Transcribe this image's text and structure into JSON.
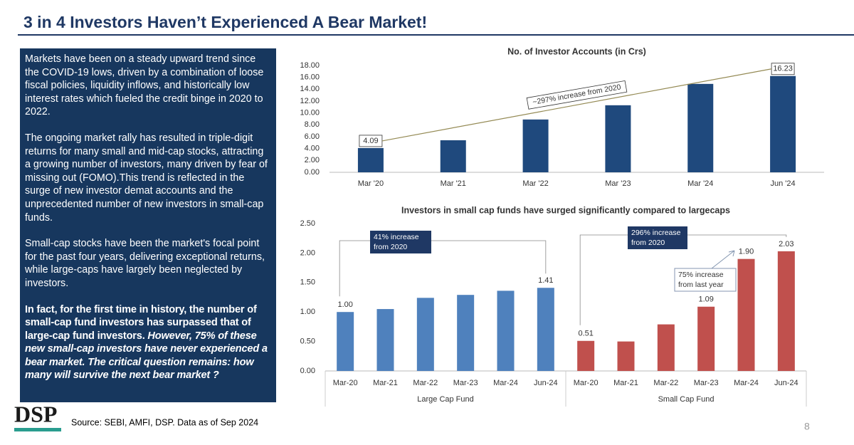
{
  "slide": {
    "title": "3 in 4 Investors Haven’t Experienced A Bear Market!",
    "paragraphs": [
      "Markets have been on a steady upward trend since the COVID-19 lows, driven by a combination of loose fiscal policies, liquidity inflows, and historically low interest rates which fueled the credit binge in 2020 to 2022.",
      "The ongoing market rally has resulted in triple-digit returns for many small and mid-cap stocks, attracting a growing number of investors, many driven by fear of missing out (FOMO).This trend is reflected in the surge of new investor demat accounts and the unprecedented number of new investors in small-cap funds.",
      "Small-cap stocks have been the market's focal point for the past four years, delivering exceptional returns, while large-caps have largely been neglected by investors."
    ],
    "closing": {
      "text": "In fact, for the first time in history, the number of small-cap fund investors has surpassed that of large-cap fund investors. ",
      "emphasis": "However, 75% of these new small-cap investors have never experienced a bear market. The critical question remains: how many will survive the next bear market ?"
    },
    "logo": "DSP",
    "source": "Source: SEBI, AMFI, DSP. Data as of Sep 2024",
    "page": "8"
  },
  "chart_data": [
    {
      "type": "bar",
      "title": "No. of Investor Accounts (in Crs)",
      "categories": [
        "Mar '20",
        "Mar '21",
        "Mar '22",
        "Mar '23",
        "Mar '24",
        "Jun '24"
      ],
      "values": [
        4.09,
        5.4,
        8.9,
        11.3,
        14.9,
        16.23
      ],
      "value_labels": [
        "4.09",
        null,
        null,
        null,
        null,
        "16.23"
      ],
      "color": "#1f497d",
      "ylim": [
        0,
        18
      ],
      "yticks": [
        {
          "value": 0,
          "label": "0.00"
        },
        {
          "value": 2,
          "label": "2.00"
        },
        {
          "value": 4,
          "label": "4.00"
        },
        {
          "value": 6,
          "label": "6.00"
        },
        {
          "value": 8,
          "label": "8.00"
        },
        {
          "value": 10,
          "label": "10.00"
        },
        {
          "value": 12,
          "label": "12.00"
        },
        {
          "value": 14,
          "label": "14.00"
        },
        {
          "value": 16,
          "label": "16.00"
        },
        {
          "value": 18,
          "label": "18.00"
        }
      ],
      "annotations": [
        [
          "~297% increase from 2020"
        ]
      ]
    },
    {
      "type": "bar",
      "title": "Investors in small cap funds have surged significantly compared to largecaps",
      "categories": [
        "Mar-20",
        "Mar-21",
        "Mar-22",
        "Mar-23",
        "Mar-24",
        "Jun-24"
      ],
      "series": [
        {
          "name": "Large Cap Fund",
          "color": "#4f81bd",
          "values": [
            1.0,
            1.05,
            1.24,
            1.29,
            1.36,
            1.41
          ],
          "value_labels": [
            "1.00",
            null,
            null,
            null,
            null,
            "1.41"
          ]
        },
        {
          "name": "Small Cap Fund",
          "color": "#c0504d",
          "values": [
            0.51,
            0.5,
            0.79,
            1.09,
            1.9,
            2.03
          ],
          "value_labels": [
            "0.51",
            null,
            null,
            "1.09",
            "1.90",
            "2.03"
          ]
        }
      ],
      "ylim": [
        0,
        2.5
      ],
      "yticks": [
        {
          "value": 0,
          "label": "0.00"
        },
        {
          "value": 0.5,
          "label": "0.50"
        },
        {
          "value": 1,
          "label": "1.00"
        },
        {
          "value": 1.5,
          "label": "1.50"
        },
        {
          "value": 2,
          "label": "2.00"
        },
        {
          "value": 2.5,
          "label": "2.50"
        }
      ],
      "annotations": [
        [
          "41% increase",
          "from 2020"
        ],
        [
          "296% increase",
          "from 2020"
        ],
        [
          "75% increase",
          "from last year"
        ]
      ]
    }
  ]
}
